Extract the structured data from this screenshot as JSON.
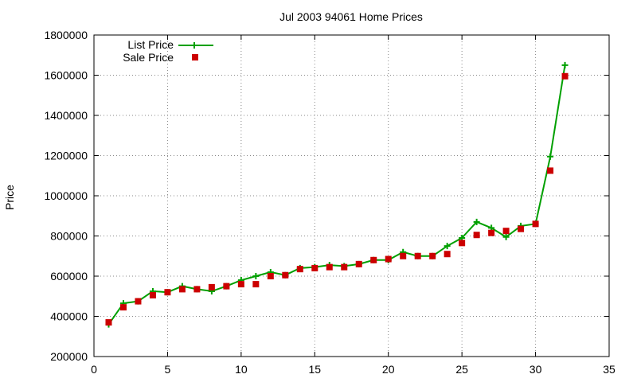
{
  "chart_data": {
    "type": "line",
    "title": "Jul 2003 94061 Home Prices",
    "xlabel": "",
    "ylabel": "Price",
    "xlim": [
      0,
      35
    ],
    "ylim": [
      200000,
      1800000
    ],
    "x_ticks": [
      "0",
      "5",
      "10",
      "15",
      "20",
      "25",
      "30",
      "35"
    ],
    "y_ticks": [
      "200000",
      "400000",
      "600000",
      "800000",
      "1000000",
      "1200000",
      "1400000",
      "1600000",
      "1800000"
    ],
    "grid": true,
    "legend_position": "top-left",
    "series": [
      {
        "name": "List Price",
        "style": "line-with-plus-markers",
        "color": "#00a000",
        "points": [
          [
            1,
            360000
          ],
          [
            2,
            465000
          ],
          [
            3,
            475000
          ],
          [
            4,
            525000
          ],
          [
            5,
            520000
          ],
          [
            6,
            550000
          ],
          [
            7,
            535000
          ],
          [
            8,
            525000
          ],
          [
            9,
            550000
          ],
          [
            10,
            580000
          ],
          [
            11,
            600000
          ],
          [
            12,
            620000
          ],
          [
            13,
            605000
          ],
          [
            14,
            640000
          ],
          [
            15,
            645000
          ],
          [
            16,
            655000
          ],
          [
            17,
            650000
          ],
          [
            18,
            660000
          ],
          [
            19,
            680000
          ],
          [
            20,
            680000
          ],
          [
            21,
            720000
          ],
          [
            22,
            700000
          ],
          [
            23,
            700000
          ],
          [
            24,
            750000
          ],
          [
            25,
            790000
          ],
          [
            26,
            870000
          ],
          [
            27,
            840000
          ],
          [
            28,
            795000
          ],
          [
            29,
            850000
          ],
          [
            30,
            860000
          ],
          [
            31,
            1195000
          ],
          [
            32,
            1650000
          ]
        ]
      },
      {
        "name": "Sale Price",
        "style": "square-markers",
        "color": "#cc0000",
        "points": [
          [
            1,
            370000
          ],
          [
            2,
            445000
          ],
          [
            3,
            475000
          ],
          [
            4,
            505000
          ],
          [
            5,
            520000
          ],
          [
            6,
            535000
          ],
          [
            7,
            535000
          ],
          [
            8,
            545000
          ],
          [
            9,
            550000
          ],
          [
            10,
            560000
          ],
          [
            11,
            560000
          ],
          [
            12,
            600000
          ],
          [
            13,
            605000
          ],
          [
            14,
            635000
          ],
          [
            15,
            640000
          ],
          [
            16,
            645000
          ],
          [
            17,
            645000
          ],
          [
            18,
            660000
          ],
          [
            19,
            680000
          ],
          [
            20,
            685000
          ],
          [
            21,
            700000
          ],
          [
            22,
            700000
          ],
          [
            23,
            700000
          ],
          [
            24,
            710000
          ],
          [
            25,
            765000
          ],
          [
            26,
            805000
          ],
          [
            27,
            815000
          ],
          [
            28,
            825000
          ],
          [
            29,
            835000
          ],
          [
            30,
            860000
          ],
          [
            31,
            1125000
          ],
          [
            32,
            1595000
          ]
        ]
      }
    ]
  }
}
